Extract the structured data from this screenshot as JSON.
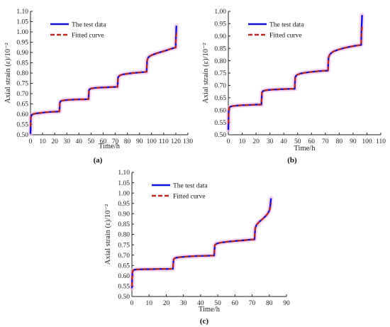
{
  "legend": {
    "test": "The test data",
    "fitted": "Fitted curve"
  },
  "colors": {
    "test": "#1010d0",
    "fitted": "#b82a1e",
    "axis": "#222222",
    "blur": "#f4b8ef"
  },
  "chart_data": [
    {
      "type": "line",
      "panel_label": "(a)",
      "xlabel": "Time/h",
      "ylabel": "Axial strain (ε)/10⁻²",
      "xlim": [
        0,
        130
      ],
      "ylim": [
        0.5,
        1.1
      ],
      "xticks": [
        0,
        10,
        20,
        30,
        40,
        50,
        60,
        70,
        80,
        90,
        100,
        110,
        120,
        130
      ],
      "yticks": [
        0.5,
        0.55,
        0.6,
        0.65,
        0.7,
        0.75,
        0.8,
        0.85,
        0.9,
        0.95,
        1.0,
        1.05,
        1.1
      ],
      "legend_position": "top-left",
      "grid": false,
      "series": [
        {
          "name": "The test data",
          "style": "solid",
          "x": [
            0,
            0.3,
            1,
            2,
            4,
            8,
            12,
            16,
            20,
            23.9,
            24,
            24.3,
            25,
            26,
            28,
            32,
            36,
            40,
            44,
            47.9,
            48,
            48.3,
            49,
            50,
            52,
            56,
            60,
            64,
            68,
            71.9,
            72,
            72.3,
            73,
            74,
            76,
            80,
            84,
            88,
            92,
            95.9,
            96,
            96.3,
            97,
            98,
            100,
            104,
            108,
            112,
            116,
            119.9,
            120,
            120.5
          ],
          "y": [
            0.505,
            0.585,
            0.596,
            0.6,
            0.603,
            0.606,
            0.609,
            0.611,
            0.612,
            0.613,
            0.625,
            0.657,
            0.663,
            0.666,
            0.668,
            0.67,
            0.671,
            0.672,
            0.672,
            0.673,
            0.685,
            0.717,
            0.722,
            0.725,
            0.727,
            0.729,
            0.73,
            0.731,
            0.732,
            0.733,
            0.748,
            0.778,
            0.785,
            0.789,
            0.793,
            0.797,
            0.8,
            0.802,
            0.804,
            0.806,
            0.82,
            0.86,
            0.873,
            0.88,
            0.887,
            0.896,
            0.903,
            0.91,
            0.918,
            0.924,
            0.955,
            1.03
          ]
        },
        {
          "name": "Fitted curve",
          "style": "dashed",
          "x": [
            0,
            0.3,
            1,
            2,
            4,
            8,
            12,
            16,
            20,
            23.9,
            24,
            24.3,
            25,
            26,
            28,
            32,
            36,
            40,
            44,
            47.9,
            48,
            48.3,
            49,
            50,
            52,
            56,
            60,
            64,
            68,
            71.9,
            72,
            72.3,
            73,
            74,
            76,
            80,
            84,
            88,
            92,
            95.9,
            96,
            96.3,
            97,
            98,
            100,
            104,
            108,
            112,
            116,
            119.9,
            120,
            120.5
          ],
          "y": [
            0.54,
            0.588,
            0.597,
            0.601,
            0.604,
            0.607,
            0.609,
            0.611,
            0.612,
            0.613,
            0.625,
            0.657,
            0.663,
            0.666,
            0.668,
            0.67,
            0.671,
            0.672,
            0.672,
            0.673,
            0.685,
            0.717,
            0.722,
            0.725,
            0.727,
            0.729,
            0.73,
            0.731,
            0.732,
            0.733,
            0.748,
            0.778,
            0.785,
            0.789,
            0.793,
            0.797,
            0.8,
            0.802,
            0.804,
            0.806,
            0.82,
            0.86,
            0.873,
            0.88,
            0.887,
            0.896,
            0.903,
            0.91,
            0.918,
            0.924,
            0.95,
            0.995
          ]
        }
      ]
    },
    {
      "type": "line",
      "panel_label": "(b)",
      "xlabel": "Time/h",
      "ylabel": "Axial strain (ε)/10⁻²",
      "xlim": [
        0,
        110
      ],
      "ylim": [
        0.5,
        1.0
      ],
      "xticks": [
        0,
        10,
        20,
        30,
        40,
        50,
        60,
        70,
        80,
        90,
        100,
        110
      ],
      "yticks": [
        0.5,
        0.55,
        0.6,
        0.65,
        0.7,
        0.75,
        0.8,
        0.85,
        0.9,
        0.95,
        1.0
      ],
      "legend_position": "top-left",
      "grid": false,
      "series": [
        {
          "name": "The test data",
          "style": "solid",
          "x": [
            0,
            0.3,
            1,
            2,
            4,
            8,
            12,
            16,
            20,
            23.9,
            24,
            24.3,
            25,
            26,
            28,
            32,
            36,
            40,
            44,
            47.9,
            48,
            48.3,
            49,
            50,
            52,
            56,
            60,
            64,
            68,
            71.9,
            72,
            72.3,
            73,
            74,
            76,
            80,
            84,
            88,
            92,
            95.9,
            96,
            96.5
          ],
          "y": [
            0.52,
            0.6,
            0.612,
            0.615,
            0.617,
            0.619,
            0.62,
            0.621,
            0.622,
            0.622,
            0.64,
            0.672,
            0.677,
            0.679,
            0.681,
            0.683,
            0.684,
            0.685,
            0.686,
            0.686,
            0.7,
            0.733,
            0.74,
            0.744,
            0.748,
            0.752,
            0.755,
            0.757,
            0.759,
            0.76,
            0.775,
            0.812,
            0.823,
            0.83,
            0.838,
            0.846,
            0.852,
            0.857,
            0.861,
            0.864,
            0.905,
            0.985
          ]
        },
        {
          "name": "Fitted curve",
          "style": "dashed",
          "x": [
            0,
            0.3,
            1,
            2,
            4,
            8,
            12,
            16,
            20,
            23.9,
            24,
            24.3,
            25,
            26,
            28,
            32,
            36,
            40,
            44,
            47.9,
            48,
            48.3,
            49,
            50,
            52,
            56,
            60,
            64,
            68,
            71.9,
            72,
            72.3,
            73,
            74,
            76,
            80,
            84,
            88,
            92,
            95.9,
            96,
            96.5
          ],
          "y": [
            0.545,
            0.603,
            0.613,
            0.615,
            0.617,
            0.619,
            0.62,
            0.621,
            0.622,
            0.622,
            0.64,
            0.672,
            0.677,
            0.679,
            0.681,
            0.683,
            0.684,
            0.685,
            0.686,
            0.686,
            0.7,
            0.733,
            0.74,
            0.744,
            0.748,
            0.752,
            0.755,
            0.757,
            0.759,
            0.76,
            0.775,
            0.812,
            0.823,
            0.83,
            0.838,
            0.846,
            0.852,
            0.857,
            0.861,
            0.864,
            0.89,
            0.94
          ]
        }
      ]
    },
    {
      "type": "line",
      "panel_label": "(c)",
      "xlabel": "Time/h",
      "ylabel": "Axial strain (ε)/10⁻²",
      "xlim": [
        0,
        90
      ],
      "ylim": [
        0.5,
        1.1
      ],
      "xticks": [
        0,
        10,
        20,
        30,
        40,
        50,
        60,
        70,
        80,
        90
      ],
      "yticks": [
        0.5,
        0.55,
        0.6,
        0.65,
        0.7,
        0.75,
        0.8,
        0.85,
        0.9,
        0.95,
        1.0,
        1.05,
        1.1
      ],
      "legend_position": "top-left",
      "grid": false,
      "series": [
        {
          "name": "The test data",
          "style": "solid",
          "x": [
            0,
            0.3,
            1,
            2,
            4,
            8,
            12,
            16,
            20,
            23.9,
            24,
            24.3,
            25,
            26,
            28,
            32,
            36,
            40,
            44,
            47.9,
            48,
            48.3,
            49,
            50,
            52,
            56,
            60,
            64,
            68,
            71.4,
            71.5,
            71.8,
            72.5,
            74,
            76,
            78,
            79,
            80,
            80.5,
            81
          ],
          "y": [
            0.54,
            0.618,
            0.628,
            0.63,
            0.631,
            0.632,
            0.632,
            0.633,
            0.633,
            0.634,
            0.65,
            0.68,
            0.685,
            0.688,
            0.69,
            0.693,
            0.695,
            0.696,
            0.697,
            0.698,
            0.715,
            0.748,
            0.754,
            0.757,
            0.761,
            0.765,
            0.768,
            0.771,
            0.774,
            0.776,
            0.79,
            0.83,
            0.845,
            0.86,
            0.874,
            0.89,
            0.9,
            0.915,
            0.935,
            0.975
          ]
        },
        {
          "name": "Fitted curve",
          "style": "dashed",
          "x": [
            0,
            0.3,
            1,
            2,
            4,
            8,
            12,
            16,
            20,
            23.9,
            24,
            24.3,
            25,
            26,
            28,
            32,
            36,
            40,
            44,
            47.9,
            48,
            48.3,
            49,
            50,
            52,
            56,
            60,
            64,
            68,
            71.4,
            71.5,
            71.8,
            72.5,
            74,
            76,
            78,
            79,
            80,
            80.5,
            81
          ],
          "y": [
            0.55,
            0.62,
            0.628,
            0.63,
            0.631,
            0.632,
            0.632,
            0.633,
            0.633,
            0.634,
            0.65,
            0.68,
            0.685,
            0.688,
            0.69,
            0.693,
            0.695,
            0.696,
            0.697,
            0.698,
            0.715,
            0.748,
            0.754,
            0.757,
            0.761,
            0.765,
            0.768,
            0.771,
            0.774,
            0.776,
            0.79,
            0.83,
            0.845,
            0.86,
            0.874,
            0.89,
            0.9,
            0.912,
            0.928,
            0.95
          ]
        }
      ]
    }
  ]
}
